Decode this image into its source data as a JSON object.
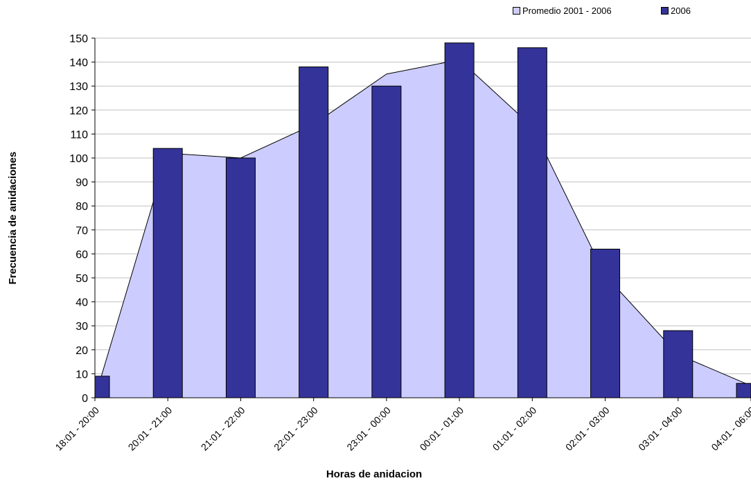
{
  "chart_data": {
    "type": "bar",
    "categories": [
      "18:01 - 20:00",
      "20:01 - 21:00",
      "21:01 - 22:00",
      "22:01 - 23:00",
      "23:01 - 00:00",
      "00:01 - 01:00",
      "01:01 - 02:00",
      "02:01 - 03:00",
      "03:01 - 04:00",
      "04:01 - 06:00"
    ],
    "series": [
      {
        "name": "Promedio 2001 - 2006",
        "type": "area",
        "color": "#ccccff",
        "values": [
          0,
          102,
          100,
          114,
          135,
          141,
          113,
          51,
          18,
          5
        ]
      },
      {
        "name": "2006",
        "type": "bar",
        "color": "#333399",
        "values": [
          9,
          104,
          100,
          138,
          130,
          148,
          146,
          62,
          28,
          6
        ]
      }
    ],
    "xlabel": "Horas de anidacion",
    "ylabel": "Frecuencia de anidaciones",
    "ylim": [
      0,
      150
    ],
    "yticks": [
      0,
      10,
      20,
      30,
      40,
      50,
      60,
      70,
      80,
      90,
      100,
      110,
      120,
      130,
      140,
      150
    ],
    "grid": true,
    "legend": "top-right"
  }
}
